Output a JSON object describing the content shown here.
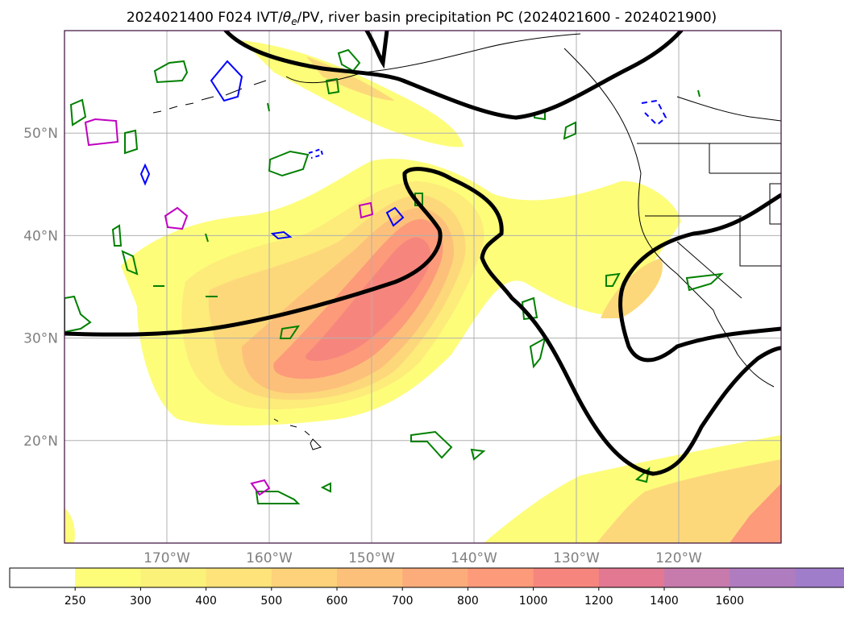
{
  "title": "2024021400 F024 IVT/θe/PV, river basin precipitation PC (2024021600 - 2024021900)",
  "title_parts": {
    "prefix": "2024021400 F024 IVT/",
    "theta": "θ",
    "sub": "e",
    "suffix": "/PV, river basin precipitation PC (2024021600 - 2024021900)"
  },
  "lat_labels": [
    "50°N",
    "40°N",
    "30°N",
    "20°N"
  ],
  "lat_values": [
    50,
    40,
    30,
    20
  ],
  "lon_labels": [
    "170°W",
    "160°W",
    "150°W",
    "140°W",
    "130°W",
    "120°W"
  ],
  "lon_values": [
    -170,
    -160,
    -150,
    -140,
    -130,
    -120
  ],
  "map_extent": {
    "lon": [
      -180,
      -110
    ],
    "lat": [
      10,
      60
    ]
  },
  "colorbar": {
    "ticks": [
      "250",
      "300",
      "400",
      "500",
      "600",
      "700",
      "800",
      "1000",
      "1200",
      "1400",
      "1600"
    ],
    "tick_values": [
      250,
      300,
      400,
      500,
      600,
      700,
      800,
      1000,
      1200,
      1400,
      1600
    ],
    "colors": [
      "#fdfd7a",
      "#fbf27a",
      "#fde37a",
      "#fdd27a",
      "#fdc07a",
      "#fcac7a",
      "#fc9a7a",
      "#f6867d",
      "#e27891",
      "#c77aac",
      "#b07cc0",
      "#a07dcb"
    ],
    "extend": "max"
  },
  "colors": {
    "theta_e_contour": "#000000",
    "pv_contour": "#008000",
    "pv_contour_2": "#0000ff",
    "pv_contour_3": "#c000c0",
    "gridlines": "#b0b0b0",
    "tick_labels": "#808080",
    "map_frame": "#3a0a3a"
  }
}
